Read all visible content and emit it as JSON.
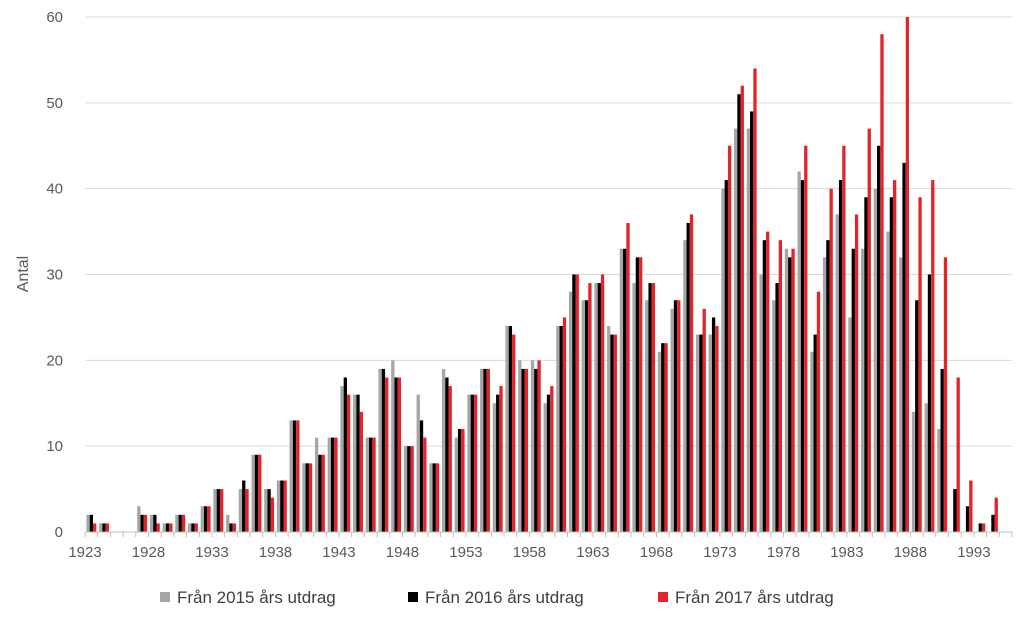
{
  "chart_data": {
    "type": "bar",
    "ylabel": "Antal",
    "xlabel": "",
    "ylim": [
      0,
      60
    ],
    "yticks": [
      0,
      10,
      20,
      30,
      40,
      50,
      60
    ],
    "xtick_labels": [
      "1923",
      "1928",
      "1933",
      "1938",
      "1943",
      "1948",
      "1953",
      "1958",
      "1963",
      "1968",
      "1973",
      "1978",
      "1983",
      "1988",
      "1993"
    ],
    "grid": "horizontal",
    "legend_position": "bottom",
    "categories": [
      1923,
      1924,
      1925,
      1926,
      1927,
      1928,
      1929,
      1930,
      1931,
      1932,
      1933,
      1934,
      1935,
      1936,
      1937,
      1938,
      1939,
      1940,
      1941,
      1942,
      1943,
      1944,
      1945,
      1946,
      1947,
      1948,
      1949,
      1950,
      1951,
      1952,
      1953,
      1954,
      1955,
      1956,
      1957,
      1958,
      1959,
      1960,
      1961,
      1962,
      1963,
      1964,
      1965,
      1966,
      1967,
      1968,
      1969,
      1970,
      1971,
      1972,
      1973,
      1974,
      1975,
      1976,
      1977,
      1978,
      1979,
      1980,
      1981,
      1982,
      1983,
      1984,
      1985,
      1986,
      1987,
      1988,
      1989,
      1990,
      1991,
      1992,
      1993,
      1994,
      1995
    ],
    "series": [
      {
        "name": "Från 2015 års utdrag",
        "color": "#a6a6a6",
        "values": [
          2,
          1,
          0,
          0,
          3,
          2,
          1,
          2,
          1,
          3,
          5,
          2,
          5,
          9,
          5,
          6,
          13,
          8,
          11,
          11,
          17,
          16,
          11,
          19,
          20,
          10,
          16,
          8,
          19,
          11,
          16,
          19,
          15,
          24,
          20,
          20,
          15,
          24,
          28,
          27,
          29,
          24,
          33,
          29,
          27,
          21,
          26,
          34,
          23,
          23,
          40,
          47,
          47,
          30,
          27,
          33,
          42,
          21,
          32,
          37,
          25,
          33,
          40,
          35,
          32,
          14,
          15,
          12,
          0,
          0,
          0,
          0,
          0
        ]
      },
      {
        "name": "Från 2016 års utdrag",
        "color": "#000000",
        "values": [
          2,
          1,
          0,
          0,
          2,
          2,
          1,
          2,
          1,
          3,
          5,
          1,
          6,
          9,
          5,
          6,
          13,
          8,
          9,
          11,
          18,
          16,
          11,
          19,
          18,
          10,
          13,
          8,
          18,
          12,
          16,
          19,
          16,
          24,
          19,
          19,
          16,
          24,
          30,
          27,
          29,
          23,
          33,
          32,
          29,
          22,
          27,
          36,
          23,
          25,
          41,
          51,
          49,
          34,
          29,
          32,
          41,
          23,
          34,
          41,
          33,
          39,
          45,
          39,
          43,
          27,
          30,
          19,
          5,
          3,
          1,
          2,
          0
        ]
      },
      {
        "name": "Från 2017 års utdrag",
        "color": "#e3242b",
        "values": [
          1,
          1,
          0,
          0,
          2,
          1,
          1,
          2,
          1,
          3,
          5,
          1,
          5,
          9,
          4,
          6,
          13,
          8,
          9,
          11,
          16,
          14,
          11,
          18,
          18,
          10,
          11,
          8,
          17,
          12,
          16,
          19,
          17,
          23,
          19,
          20,
          17,
          25,
          30,
          29,
          30,
          23,
          36,
          32,
          29,
          22,
          27,
          37,
          26,
          24,
          45,
          52,
          54,
          35,
          34,
          33,
          45,
          28,
          40,
          45,
          37,
          47,
          58,
          41,
          60,
          39,
          41,
          32,
          18,
          6,
          1,
          4,
          0
        ]
      }
    ]
  }
}
